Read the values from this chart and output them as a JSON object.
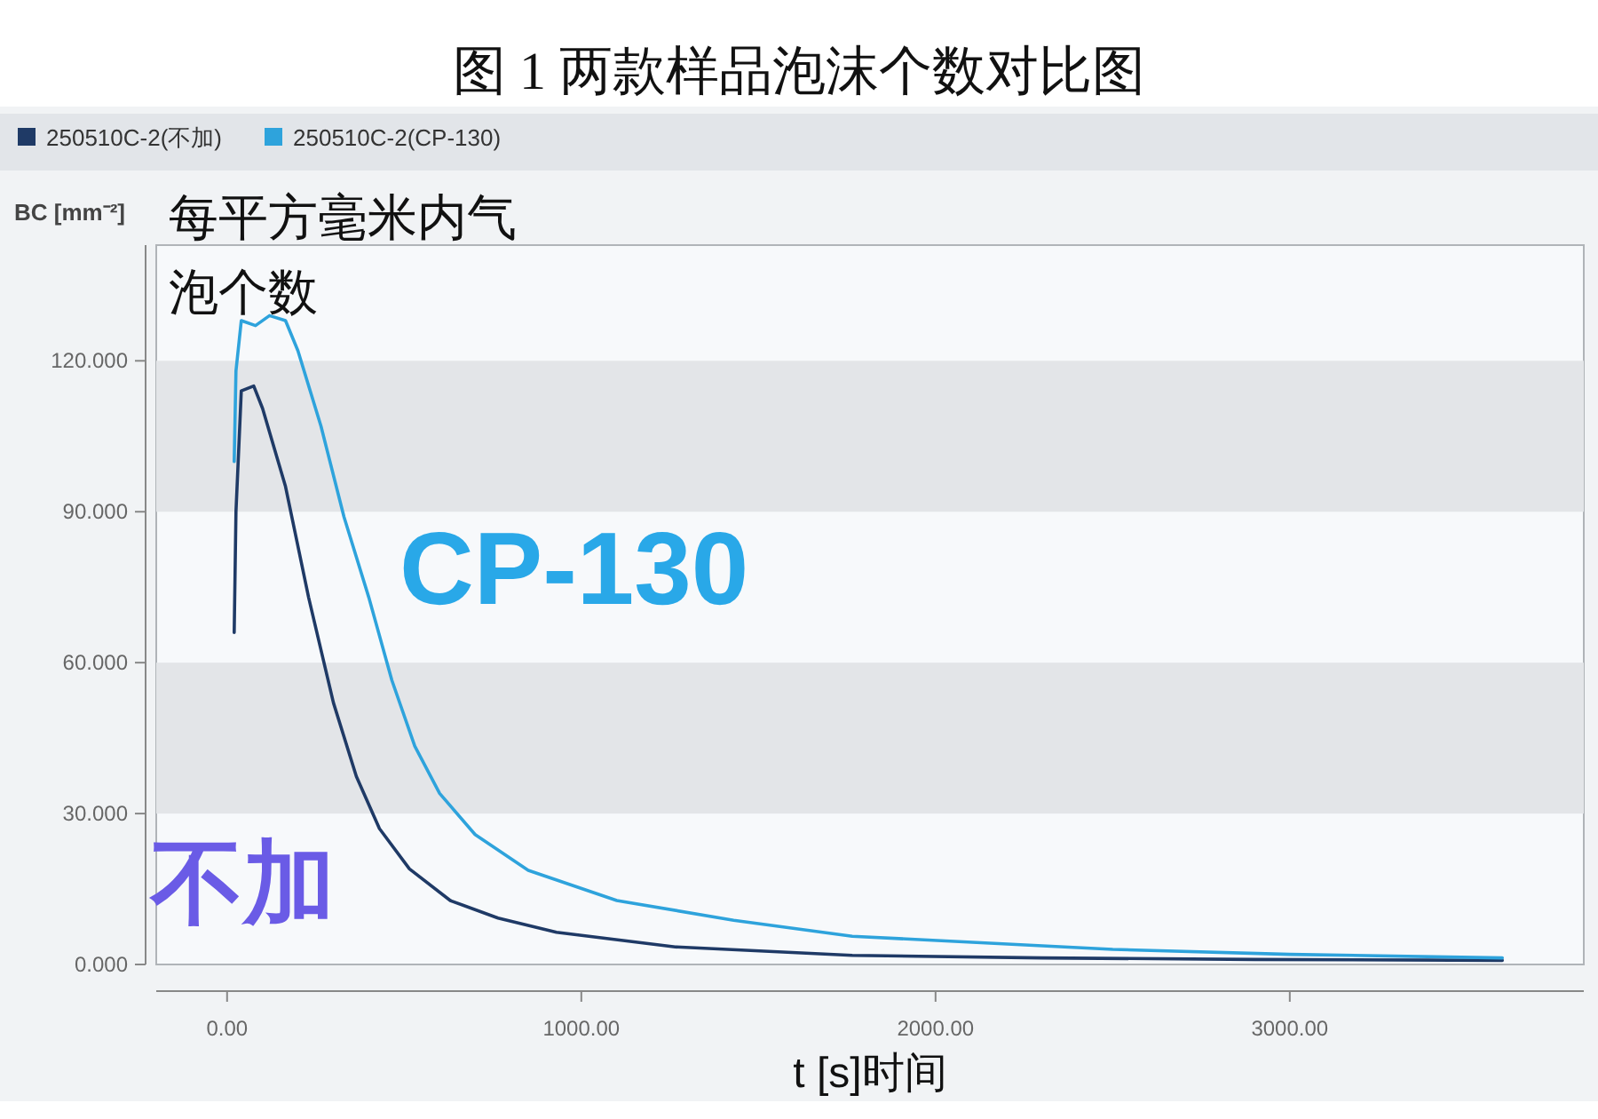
{
  "chart_data": {
    "type": "line",
    "title": "图 1 两款样品泡沫个数对比图",
    "xlabel": "t [s]时间",
    "ylabel": "BC [mm⁻²]",
    "annotations": [
      "每平方毫米内气泡个数",
      "CP-130",
      "不加"
    ],
    "legend": "top",
    "marker": "none",
    "line_style": "solid",
    "xlim": [
      -200,
      3830
    ],
    "ylim": [
      0,
      143
    ],
    "xticks": [
      {
        "value": 0,
        "label": "0.00"
      },
      {
        "value": 1000,
        "label": "1000.00"
      },
      {
        "value": 2000,
        "label": "2000.00"
      },
      {
        "value": 3000,
        "label": "3000.00"
      }
    ],
    "yticks": [
      {
        "value": 0,
        "label": "0.000"
      },
      {
        "value": 30,
        "label": "30.000"
      },
      {
        "value": 60,
        "label": "60.000"
      },
      {
        "value": 90,
        "label": "90.000"
      },
      {
        "value": 120,
        "label": "120.000"
      }
    ],
    "bands": [
      {
        "axis": "y",
        "from": 30,
        "to": 60,
        "color": "#e3e5e8"
      },
      {
        "axis": "y",
        "from": 90,
        "to": 120,
        "color": "#e3e5e8"
      }
    ],
    "series": [
      {
        "name": "250510C-2(不加)",
        "color": "#1f3a66",
        "x": [
          20,
          25,
          40,
          75,
          100,
          165,
          230,
          300,
          365,
          430,
          515,
          630,
          765,
          930,
          1265,
          1765,
          2300,
          2900,
          3600
        ],
        "values": [
          66,
          90,
          114,
          115,
          110.5,
          95,
          73,
          52,
          37.4,
          27,
          19,
          12.7,
          9.2,
          6.4,
          3.5,
          1.8,
          1.3,
          1,
          0.8
        ]
      },
      {
        "name": "250510C-2(CP-130)",
        "color": "#2ea3dc",
        "x": [
          20,
          25,
          40,
          80,
          120,
          165,
          200,
          265,
          330,
          400,
          465,
          530,
          600,
          700,
          850,
          1100,
          1430,
          1765,
          2500,
          3000,
          3600
        ],
        "values": [
          100,
          118,
          128,
          127,
          129,
          128,
          122,
          107,
          89,
          73,
          56.5,
          43.4,
          34,
          25.8,
          18.7,
          12.7,
          8.8,
          5.6,
          3,
          2,
          1.3
        ]
      }
    ]
  }
}
